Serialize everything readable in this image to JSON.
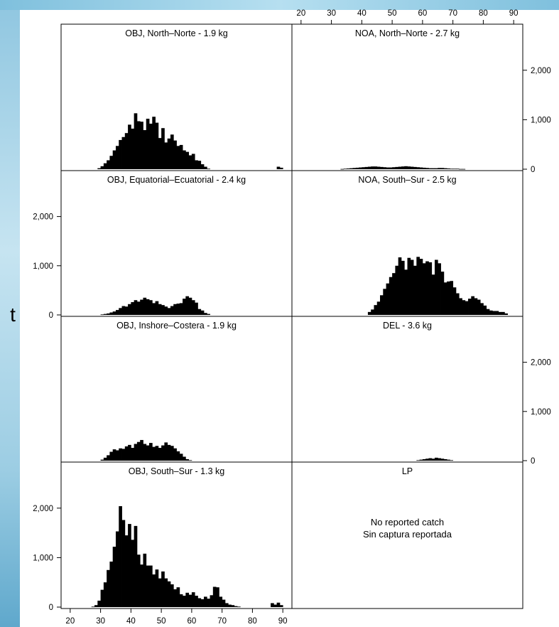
{
  "chart_data": {
    "type": "histogram_panels",
    "y_unit_label": "t",
    "x_ticks": [
      20,
      30,
      40,
      50,
      60,
      70,
      80,
      90
    ],
    "y_ticks": [
      0,
      1000,
      2000
    ],
    "y_tick_labels": [
      "0",
      "1,000",
      "2,000"
    ],
    "xlim": [
      17,
      93
    ],
    "ylim": [
      0,
      2500
    ],
    "bin_start": 20,
    "bin_width": 1,
    "panels": [
      {
        "id": "obj-north",
        "title": "OBJ, North–Norte - 1.9 kg",
        "values": [
          0,
          0,
          0,
          0,
          0,
          0,
          0,
          0,
          0,
          20,
          60,
          120,
          180,
          270,
          380,
          470,
          590,
          650,
          730,
          900,
          820,
          1130,
          970,
          960,
          790,
          1020,
          920,
          1060,
          940,
          630,
          830,
          540,
          620,
          700,
          580,
          470,
          490,
          380,
          350,
          280,
          310,
          180,
          170,
          100,
          50,
          10,
          0,
          0,
          0,
          0,
          0,
          0,
          0,
          0,
          0,
          0,
          0,
          0,
          0,
          0,
          0,
          0,
          0,
          0,
          0,
          0,
          0,
          0,
          50,
          30,
          0
        ]
      },
      {
        "id": "noa-north",
        "title": "NOA, North–Norte - 2.7 kg",
        "values": [
          0,
          0,
          0,
          0,
          0,
          0,
          0,
          0,
          0,
          0,
          0,
          0,
          0,
          5,
          10,
          15,
          20,
          25,
          30,
          35,
          40,
          45,
          50,
          55,
          55,
          50,
          45,
          40,
          35,
          35,
          40,
          45,
          50,
          55,
          60,
          55,
          50,
          45,
          40,
          35,
          30,
          25,
          20,
          20,
          20,
          25,
          25,
          20,
          15,
          10,
          10,
          10,
          5,
          5,
          0,
          0,
          0,
          0,
          0,
          0,
          0,
          0,
          0,
          0,
          0,
          0,
          0,
          0,
          0,
          0,
          0
        ]
      },
      {
        "id": "obj-equatorial",
        "title": "OBJ, Equatorial–Ecuatorial - 2.4 kg",
        "values": [
          0,
          0,
          0,
          0,
          0,
          0,
          0,
          0,
          0,
          0,
          10,
          20,
          30,
          50,
          70,
          100,
          140,
          180,
          170,
          220,
          260,
          300,
          270,
          310,
          350,
          320,
          300,
          240,
          280,
          220,
          200,
          170,
          140,
          180,
          220,
          230,
          240,
          330,
          380,
          350,
          300,
          250,
          120,
          90,
          40,
          20,
          0,
          0,
          0,
          0,
          0,
          0,
          0,
          0,
          0,
          0,
          0,
          0,
          0,
          0,
          0,
          0,
          0,
          0,
          0,
          0,
          0,
          0,
          0,
          0,
          0
        ]
      },
      {
        "id": "noa-south",
        "title": "NOA, South–Sur - 2.5 kg",
        "values": [
          0,
          0,
          0,
          0,
          0,
          0,
          0,
          0,
          0,
          0,
          0,
          0,
          0,
          0,
          0,
          0,
          0,
          0,
          0,
          0,
          0,
          0,
          60,
          110,
          200,
          270,
          400,
          530,
          640,
          770,
          850,
          1000,
          1170,
          1100,
          920,
          1160,
          1120,
          1000,
          1180,
          1140,
          1050,
          1090,
          1070,
          820,
          1120,
          1050,
          880,
          660,
          680,
          690,
          560,
          440,
          340,
          300,
          280,
          330,
          380,
          340,
          310,
          240,
          190,
          120,
          90,
          80,
          80,
          60,
          60,
          30,
          0,
          0,
          0
        ]
      },
      {
        "id": "obj-inshore",
        "title": "OBJ, Inshore–Costera - 1.9 kg",
        "values": [
          0,
          0,
          0,
          0,
          0,
          0,
          0,
          0,
          0,
          0,
          20,
          60,
          110,
          180,
          230,
          210,
          250,
          240,
          290,
          320,
          260,
          340,
          380,
          420,
          340,
          310,
          360,
          280,
          300,
          260,
          310,
          370,
          320,
          300,
          250,
          190,
          140,
          80,
          30,
          10,
          0,
          0,
          0,
          0,
          0,
          0,
          0,
          0,
          0,
          0,
          0,
          0,
          0,
          0,
          0,
          0,
          0,
          0,
          0,
          0,
          0,
          0,
          0,
          0,
          0,
          0,
          0,
          0,
          0,
          0,
          0
        ]
      },
      {
        "id": "del",
        "title": "DEL - 3.6 kg",
        "values": [
          0,
          0,
          0,
          0,
          0,
          0,
          0,
          0,
          0,
          0,
          0,
          0,
          0,
          0,
          0,
          0,
          0,
          0,
          0,
          0,
          0,
          0,
          0,
          0,
          0,
          0,
          0,
          0,
          0,
          0,
          0,
          0,
          0,
          0,
          0,
          0,
          0,
          0,
          10,
          20,
          30,
          40,
          50,
          40,
          60,
          50,
          40,
          30,
          20,
          10,
          0,
          0,
          0,
          0,
          0,
          0,
          0,
          0,
          0,
          0,
          0,
          0,
          0,
          0,
          0,
          0,
          0,
          0,
          0,
          0,
          0
        ]
      },
      {
        "id": "obj-south",
        "title": "OBJ, South–Sur - 1.3 kg",
        "values": [
          0,
          0,
          0,
          0,
          0,
          0,
          0,
          10,
          40,
          130,
          350,
          500,
          750,
          920,
          1220,
          1530,
          2040,
          1760,
          1450,
          1680,
          1360,
          1640,
          1060,
          860,
          1080,
          840,
          840,
          660,
          760,
          580,
          720,
          580,
          520,
          460,
          360,
          400,
          260,
          230,
          290,
          250,
          300,
          230,
          180,
          160,
          210,
          170,
          240,
          410,
          400,
          210,
          150,
          80,
          50,
          40,
          20,
          10,
          0,
          0,
          0,
          0,
          0,
          0,
          0,
          0,
          0,
          0,
          80,
          50,
          90,
          40,
          0
        ]
      },
      {
        "id": "lp",
        "title": "LP",
        "values": [],
        "note_lines": [
          "No reported catch",
          "Sin captura reportada"
        ]
      }
    ]
  }
}
